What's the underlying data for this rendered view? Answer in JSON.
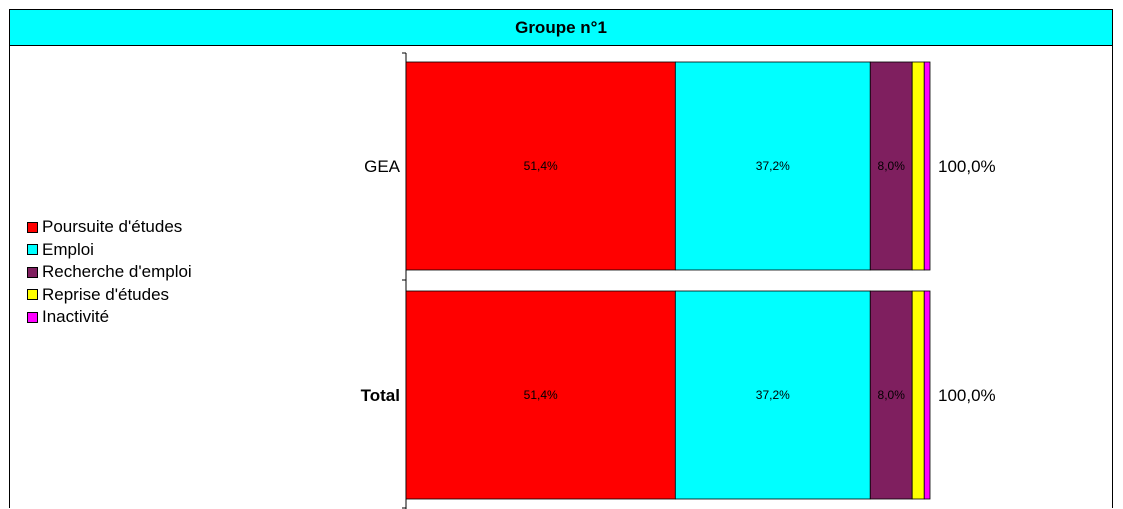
{
  "chart_data": {
    "type": "bar",
    "orientation": "horizontal",
    "stacked": true,
    "title": "Groupe n°1",
    "categories": [
      "GEA",
      "Total"
    ],
    "series": [
      {
        "name": "Poursuite d'études",
        "values": [
          51.4,
          51.4
        ],
        "labels": [
          "51,4%",
          "51,4%"
        ],
        "color": "#ff0000"
      },
      {
        "name": "Emploi",
        "values": [
          37.2,
          37.2
        ],
        "labels": [
          "37,2%",
          "37,2%"
        ],
        "color": "#00ffff"
      },
      {
        "name": "Recherche d'emploi",
        "values": [
          8.0,
          8.0
        ],
        "labels": [
          "8,0%",
          "8,0%"
        ],
        "color": "#7f1f5f"
      },
      {
        "name": "Reprise d'études",
        "values": [
          2.3,
          2.3
        ],
        "labels": [
          "",
          ""
        ],
        "color": "#ffff00"
      },
      {
        "name": "Inactivité",
        "values": [
          1.1,
          1.1
        ],
        "labels": [
          "",
          ""
        ],
        "color": "#ff00ff"
      }
    ],
    "totals": [
      "100,0%",
      "100,0%"
    ],
    "xlim": [
      0,
      100
    ],
    "legend_position": "left",
    "grid": false
  }
}
